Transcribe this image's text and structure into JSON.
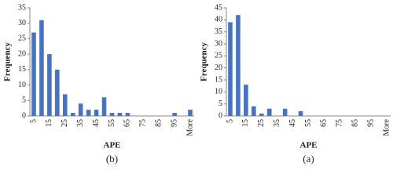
{
  "chart_data": [
    {
      "type": "bar",
      "caption": "(b)",
      "xlabel": "APE",
      "ylabel": "Frequency",
      "color": "#4472c4",
      "categories": [
        "5",
        null,
        "15",
        null,
        "25",
        null,
        "35",
        null,
        "45",
        null,
        "55",
        null,
        "65",
        null,
        "75",
        null,
        "85",
        null,
        "95",
        null,
        "More"
      ],
      "values": [
        27,
        31,
        20,
        15,
        7,
        1,
        4,
        2,
        2,
        6,
        1,
        1,
        1,
        0,
        0,
        0,
        0,
        0,
        1,
        0,
        2
      ],
      "ylim": [
        0,
        35
      ],
      "yticks": [
        0,
        5,
        10,
        15,
        20,
        25,
        30,
        35
      ],
      "grid": false
    },
    {
      "type": "bar",
      "caption": "(a)",
      "xlabel": "APE",
      "ylabel": "Frequency",
      "color": "#4472c4",
      "categories": [
        "5",
        null,
        "15",
        null,
        "25",
        null,
        "35",
        null,
        "45",
        null,
        "55",
        null,
        "65",
        null,
        "75",
        null,
        "85",
        null,
        "95",
        null,
        "More"
      ],
      "values": [
        39,
        42,
        13,
        4,
        1,
        3,
        0,
        3,
        0,
        2,
        0,
        0,
        0,
        0,
        0,
        0,
        0,
        0,
        0,
        0,
        0
      ],
      "ylim": [
        0,
        45
      ],
      "yticks": [
        0,
        5,
        10,
        15,
        20,
        25,
        30,
        35,
        40,
        45
      ],
      "grid": false
    }
  ]
}
